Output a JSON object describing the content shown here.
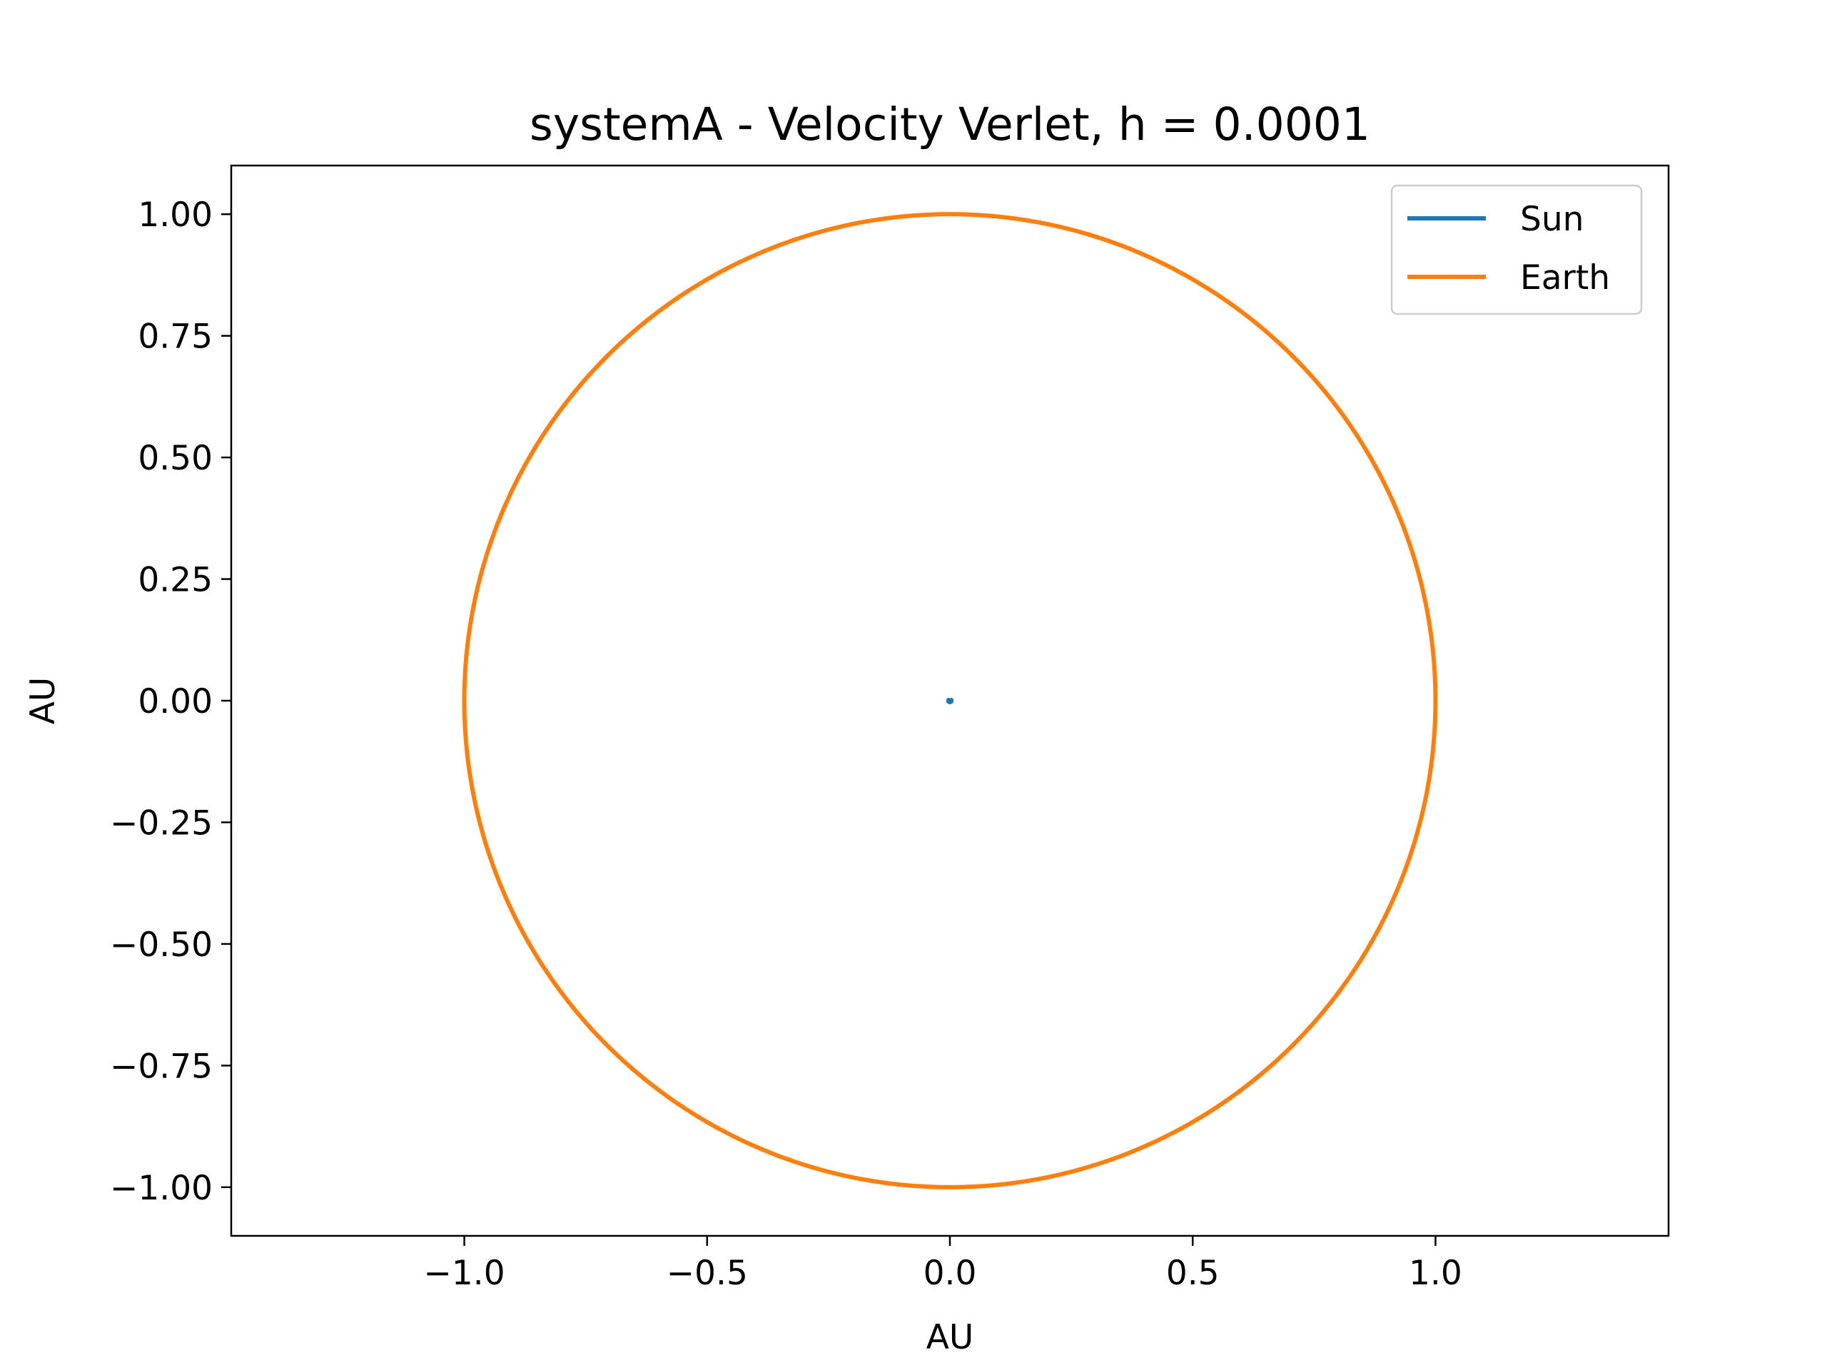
{
  "chart_data": {
    "type": "line",
    "title": "systemA - Velocity Verlet, h = 0.0001",
    "xlabel": "AU",
    "ylabel": "AU",
    "xlim": [
      -1.48,
      1.48
    ],
    "ylim": [
      -1.1,
      1.1
    ],
    "x_ticks": [
      -1.0,
      -0.5,
      0.0,
      0.5,
      1.0
    ],
    "x_tick_labels": [
      "−1.0",
      "−0.5",
      "0.0",
      "0.5",
      "1.0"
    ],
    "y_ticks": [
      1.0,
      0.75,
      0.5,
      0.25,
      0.0,
      -0.25,
      -0.5,
      -0.75,
      -1.0
    ],
    "y_tick_labels": [
      "1.00",
      "0.75",
      "0.50",
      "0.25",
      "0.00",
      "−0.25",
      "−0.50",
      "−0.75",
      "−1.00"
    ],
    "grid": false,
    "legend_position": "top-right",
    "series": [
      {
        "name": "Sun",
        "color": "#1f77b4",
        "shape": "point",
        "x": [
          0.0,
          0.003,
          0.003,
          0.0,
          -0.003,
          -0.003,
          0.0
        ],
        "y": [
          0.0,
          0.0015,
          -0.0015,
          -0.003,
          -0.0015,
          0.0015,
          0.0
        ]
      },
      {
        "name": "Earth",
        "color": "#ff7f0e",
        "shape": "circle",
        "center": [
          0.0,
          0.0
        ],
        "radius": 1.0
      }
    ]
  }
}
